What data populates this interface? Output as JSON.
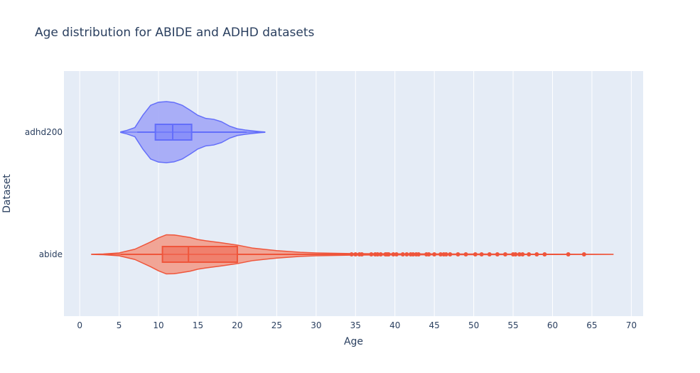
{
  "chart_data": {
    "type": "violin",
    "title": "Age distribution for ABIDE and ADHD datasets",
    "xlabel": "Age",
    "ylabel": "Dataset",
    "xlim": [
      -2,
      71.5
    ],
    "x_ticks": [
      0,
      5,
      10,
      15,
      20,
      25,
      30,
      35,
      40,
      45,
      50,
      55,
      60,
      65,
      70
    ],
    "x_tick_labels": [
      "0",
      "5",
      "10",
      "15",
      "20",
      "25",
      "30",
      "35",
      "40",
      "45",
      "50",
      "55",
      "60",
      "65",
      "70"
    ],
    "categories": [
      "adhd200",
      "abide"
    ],
    "grid": true,
    "orientation": "horizontal",
    "series": [
      {
        "category": "adhd200",
        "color": "#636efa",
        "fill": "#a5abf7",
        "kde_range": [
          5.2,
          23.5
        ],
        "box": {
          "lower_fence": 7.3,
          "q1": 9.6,
          "median": 11.8,
          "q3": 14.2,
          "upper_fence": 21.2
        },
        "density": [
          [
            5.2,
            0.01
          ],
          [
            6,
            0.06
          ],
          [
            7,
            0.15
          ],
          [
            8,
            0.55
          ],
          [
            9,
            0.88
          ],
          [
            10,
            0.98
          ],
          [
            11,
            1.0
          ],
          [
            12,
            0.97
          ],
          [
            13,
            0.88
          ],
          [
            14,
            0.72
          ],
          [
            15,
            0.55
          ],
          [
            16,
            0.45
          ],
          [
            17,
            0.42
          ],
          [
            18,
            0.34
          ],
          [
            19,
            0.2
          ],
          [
            20,
            0.11
          ],
          [
            21,
            0.07
          ],
          [
            22,
            0.04
          ],
          [
            23,
            0.015
          ],
          [
            23.5,
            0.005
          ]
        ],
        "outliers": []
      },
      {
        "category": "abide",
        "color": "#ef553b",
        "fill": "#f1a190",
        "kde_range": [
          1.5,
          67.7
        ],
        "box": {
          "lower_fence": 5.2,
          "q1": 10.5,
          "median": 13.8,
          "q3": 20.0,
          "upper_fence": 34.2
        },
        "density": [
          [
            1.5,
            0.005
          ],
          [
            3,
            0.015
          ],
          [
            5,
            0.07
          ],
          [
            7,
            0.25
          ],
          [
            9,
            0.6
          ],
          [
            10,
            0.8
          ],
          [
            11,
            0.95
          ],
          [
            12,
            0.94
          ],
          [
            13,
            0.88
          ],
          [
            14,
            0.82
          ],
          [
            15,
            0.72
          ],
          [
            16,
            0.66
          ],
          [
            18,
            0.56
          ],
          [
            20,
            0.45
          ],
          [
            22,
            0.3
          ],
          [
            25,
            0.18
          ],
          [
            28,
            0.1
          ],
          [
            30,
            0.07
          ],
          [
            35,
            0.035
          ],
          [
            40,
            0.025
          ],
          [
            45,
            0.02
          ],
          [
            50,
            0.017
          ],
          [
            55,
            0.014
          ],
          [
            60,
            0.009
          ],
          [
            65,
            0.004
          ],
          [
            67.7,
            0.001
          ]
        ],
        "outliers": [
          34.5,
          35,
          35.5,
          35.8,
          37,
          37.5,
          37.8,
          38.2,
          38.8,
          39,
          39.2,
          39.8,
          40.2,
          41,
          41.5,
          42,
          42.3,
          42.7,
          43,
          44,
          44.3,
          45,
          45.8,
          46.2,
          46.5,
          47,
          48,
          49,
          50.2,
          51,
          52,
          53,
          54,
          55,
          55.3,
          55.8,
          56.2,
          57,
          58,
          59,
          62,
          64
        ]
      }
    ]
  }
}
